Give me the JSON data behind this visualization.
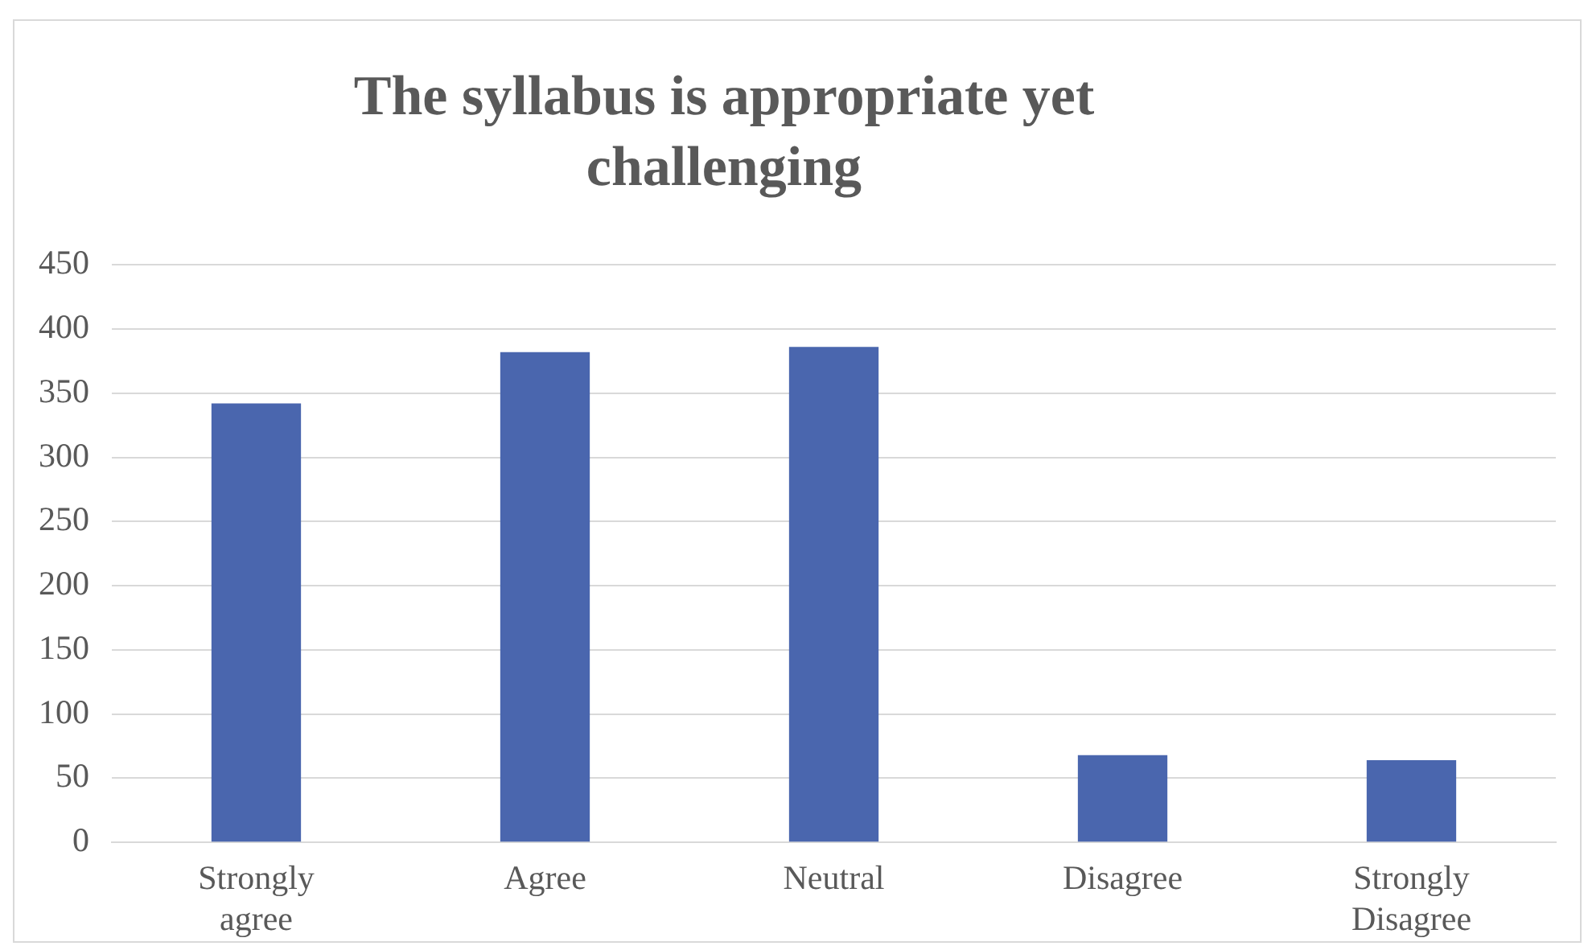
{
  "chart_data": {
    "type": "bar",
    "title": "The syllabus is appropriate yet challenging",
    "categories": [
      "Strongly agree",
      "Agree",
      "Neutral",
      "Disagree",
      "Strongly Disagree"
    ],
    "values": [
      342,
      382,
      386,
      68,
      64
    ],
    "color": "#4a66ae",
    "ylim": [
      0,
      450
    ],
    "yticks": [
      0,
      50,
      100,
      150,
      200,
      250,
      300,
      350,
      400,
      450
    ],
    "grid": "y",
    "legend": false
  }
}
